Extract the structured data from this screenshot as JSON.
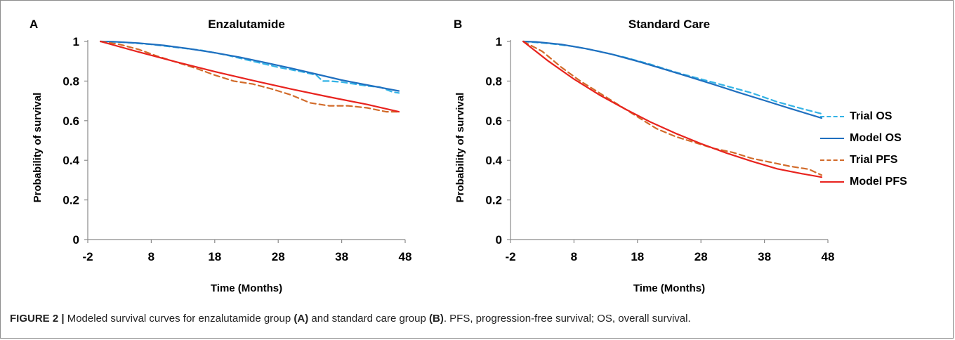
{
  "chart_data": [
    {
      "type": "line",
      "panel_label": "A",
      "title": "Enzalutamide",
      "xlabel": "Time (Months)",
      "ylabel": "Probability of survival",
      "xlim": [
        -2,
        48
      ],
      "ylim": [
        0,
        1
      ],
      "xticks": [
        -2,
        8,
        18,
        28,
        38,
        48
      ],
      "yticks": [
        0,
        0.2,
        0.4,
        0.6,
        0.8,
        1
      ],
      "ytick_labels": [
        "0",
        "0.2",
        "0.4",
        "0.6",
        "0.8",
        "1"
      ],
      "grid": false,
      "series": [
        {
          "name": "Trial OS",
          "color": "#33b3e6",
          "dash": "dashed",
          "x": [
            0,
            4,
            8,
            12,
            16,
            20,
            24,
            28,
            32,
            34,
            35,
            36,
            38,
            40,
            42,
            44,
            46,
            47
          ],
          "y": [
            1,
            0.995,
            0.985,
            0.97,
            0.955,
            0.93,
            0.9,
            0.87,
            0.845,
            0.83,
            0.8,
            0.8,
            0.795,
            0.785,
            0.775,
            0.77,
            0.745,
            0.74
          ]
        },
        {
          "name": "Model OS",
          "color": "#1f6fbf",
          "dash": "solid",
          "x": [
            0,
            2,
            6,
            10,
            14,
            18,
            22,
            26,
            30,
            34,
            38,
            42,
            47
          ],
          "y": [
            1,
            0.999,
            0.992,
            0.98,
            0.963,
            0.943,
            0.92,
            0.893,
            0.865,
            0.835,
            0.805,
            0.78,
            0.75
          ]
        },
        {
          "name": "Trial PFS",
          "color": "#d26b2a",
          "dash": "dashed",
          "x": [
            0,
            3,
            6,
            9,
            12,
            15,
            18,
            21,
            24,
            27,
            30,
            33,
            36,
            39,
            42,
            45,
            47
          ],
          "y": [
            1,
            0.985,
            0.96,
            0.925,
            0.895,
            0.865,
            0.83,
            0.8,
            0.785,
            0.76,
            0.73,
            0.69,
            0.675,
            0.675,
            0.665,
            0.645,
            0.645
          ]
        },
        {
          "name": "Model PFS",
          "color": "#e8231e",
          "dash": "solid",
          "x": [
            0,
            6,
            12,
            18,
            24,
            30,
            36,
            42,
            47
          ],
          "y": [
            1,
            0.947,
            0.896,
            0.848,
            0.803,
            0.76,
            0.72,
            0.682,
            0.645
          ]
        }
      ]
    },
    {
      "type": "line",
      "panel_label": "B",
      "title": "Standard Care",
      "xlabel": "Time (Months)",
      "ylabel": "Probability of survival",
      "xlim": [
        -2,
        48
      ],
      "ylim": [
        0,
        1
      ],
      "xticks": [
        -2,
        8,
        18,
        28,
        38,
        48
      ],
      "yticks": [
        0,
        0.2,
        0.4,
        0.6,
        0.8,
        1
      ],
      "ytick_labels": [
        "0",
        "0.2",
        "0.4",
        "0.6",
        "0.8",
        "1"
      ],
      "grid": false,
      "series": [
        {
          "name": "Trial OS",
          "color": "#33b3e6",
          "dash": "dashed",
          "x": [
            0,
            4,
            8,
            12,
            16,
            20,
            24,
            28,
            32,
            36,
            40,
            44,
            47
          ],
          "y": [
            1,
            0.99,
            0.975,
            0.95,
            0.92,
            0.885,
            0.845,
            0.81,
            0.775,
            0.74,
            0.695,
            0.66,
            0.635
          ]
        },
        {
          "name": "Model OS",
          "color": "#1f6fbf",
          "dash": "solid",
          "x": [
            0,
            2,
            6,
            10,
            14,
            18,
            22,
            26,
            30,
            34,
            38,
            42,
            47
          ],
          "y": [
            1,
            0.998,
            0.985,
            0.963,
            0.935,
            0.9,
            0.862,
            0.823,
            0.783,
            0.742,
            0.702,
            0.662,
            0.613
          ]
        },
        {
          "name": "Trial PFS",
          "color": "#d26b2a",
          "dash": "dashed",
          "x": [
            0,
            3,
            6,
            9,
            12,
            15,
            18,
            21,
            24,
            27,
            30,
            33,
            36,
            39,
            42,
            45,
            47
          ],
          "y": [
            1,
            0.95,
            0.87,
            0.8,
            0.74,
            0.68,
            0.62,
            0.56,
            0.52,
            0.49,
            0.46,
            0.44,
            0.41,
            0.39,
            0.37,
            0.355,
            0.325
          ]
        },
        {
          "name": "Model PFS",
          "color": "#e8231e",
          "dash": "solid",
          "x": [
            0,
            4,
            8,
            12,
            16,
            20,
            24,
            28,
            32,
            36,
            40,
            44,
            47
          ],
          "y": [
            1,
            0.9,
            0.81,
            0.73,
            0.66,
            0.594,
            0.536,
            0.484,
            0.437,
            0.395,
            0.357,
            0.332,
            0.315
          ]
        }
      ]
    }
  ],
  "legend": [
    {
      "name": "Trial OS",
      "color": "#33b3e6",
      "dash": "dashed"
    },
    {
      "name": "Model OS",
      "color": "#1f6fbf",
      "dash": "solid"
    },
    {
      "name": "Trial PFS",
      "color": "#d26b2a",
      "dash": "dashed"
    },
    {
      "name": "Model PFS",
      "color": "#e8231e",
      "dash": "solid"
    }
  ],
  "caption": {
    "lead": "FIGURE 2 |",
    "text1": " Modeled survival curves for enzalutamide group ",
    "ref_a": "(A)",
    "text2": " and standard care group ",
    "ref_b": "(B)",
    "text3": ". PFS, progression-free survival; OS, overall survival."
  }
}
